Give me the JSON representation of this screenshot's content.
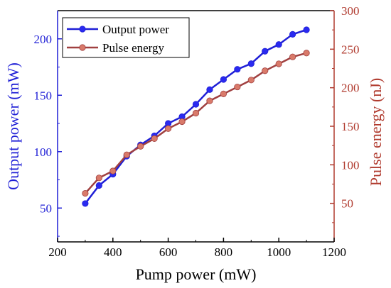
{
  "chart_data": {
    "type": "line",
    "xlabel": "Pump power (mW)",
    "ylabel_left": "Output power (mW)",
    "ylabel_right": "Pulse energy (nJ)",
    "xlim": [
      200,
      1200
    ],
    "xticks": [
      200,
      400,
      600,
      800,
      1000,
      1200
    ],
    "ylim_left": [
      20,
      225
    ],
    "yticks_left": [
      50,
      100,
      150,
      200
    ],
    "ylim_right": [
      0,
      300
    ],
    "yticks_right": [
      50,
      100,
      150,
      200,
      250,
      300
    ],
    "legend_position": "top-left",
    "series": [
      {
        "name": "Output power",
        "axis": "left",
        "color": "#1f1fd6",
        "marker_color": "#2a2af0",
        "x": [
          300,
          350,
          400,
          450,
          500,
          550,
          600,
          650,
          700,
          750,
          800,
          850,
          900,
          950,
          1000,
          1050,
          1100
        ],
        "values": [
          54,
          70,
          80,
          96,
          106,
          114,
          125,
          131,
          142,
          155,
          164,
          173,
          178,
          189,
          195,
          204,
          208
        ]
      },
      {
        "name": "Pulse energy",
        "axis": "right",
        "color": "#a04040",
        "marker_color": "#d97a6a",
        "x": [
          300,
          350,
          400,
          450,
          500,
          550,
          600,
          650,
          700,
          750,
          800,
          850,
          900,
          950,
          1000,
          1050,
          1100
        ],
        "values": [
          63,
          83,
          92,
          113,
          124,
          134,
          147,
          156,
          167,
          183,
          192,
          201,
          210,
          222,
          231,
          240,
          245
        ]
      }
    ],
    "colors": {
      "left_axis": "#1f1fd6",
      "right_axis": "#b03a2e",
      "x_axis": "#000000"
    }
  }
}
